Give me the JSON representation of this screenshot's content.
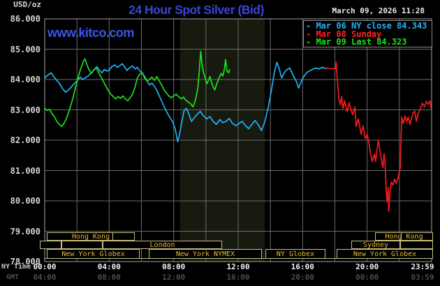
{
  "header": {
    "unit_label": "USD/oz",
    "title": "24 Hour Spot Silver (Bid)",
    "timestamp": "March 09, 2026 11:28",
    "watermark": "www.kitco.com"
  },
  "legend": [
    {
      "label": "- Mar 06 NY close 84.343",
      "color": "#1fb4f5"
    },
    {
      "label": "- Mar 08 Sunday",
      "color": "#ff2222"
    },
    {
      "label": "- Mar 09 Last 84.323",
      "color": "#1ee11e"
    }
  ],
  "axes": {
    "left_label_ny": "NY Time",
    "left_label_gmt": "GMT",
    "y_ticks": [
      {
        "value": 86,
        "label": "86.000"
      },
      {
        "value": 85,
        "label": "85.000"
      },
      {
        "value": 84,
        "label": "84.000"
      },
      {
        "value": 83,
        "label": "83.000"
      },
      {
        "value": 82,
        "label": "82.000"
      },
      {
        "value": 81,
        "label": "81.000"
      },
      {
        "value": 80,
        "label": "80.000"
      },
      {
        "value": 79,
        "label": "79.000"
      },
      {
        "value": 78,
        "label": "78.000"
      }
    ],
    "x_ticks": [
      {
        "t": 0,
        "ny": "00:00",
        "gmt": "04:00"
      },
      {
        "t": 4,
        "ny": "04:00",
        "gmt": "08:00"
      },
      {
        "t": 8,
        "ny": "08:00",
        "gmt": "12:00"
      },
      {
        "t": 12,
        "ny": "12:00",
        "gmt": "16:00"
      },
      {
        "t": 16,
        "ny": "16:00",
        "gmt": "20:00"
      },
      {
        "t": 20,
        "ny": "20:00",
        "gmt": "00:00"
      },
      {
        "t": 23.983,
        "ny": "23:59",
        "gmt": "03:59"
      }
    ]
  },
  "sessions": {
    "rows": [
      {
        "boxes": [
          {
            "x1": 67,
            "x2": 193,
            "label": "Hong Kong",
            "dividers": [
              160
            ]
          },
          {
            "x1": 537,
            "x2": 620,
            "label": "Hong Kong",
            "dividers": [
              573
            ]
          }
        ]
      },
      {
        "boxes": [
          {
            "x1": 57,
            "x2": 88,
            "label": ""
          },
          {
            "x1": 88,
            "x2": 147,
            "label": ""
          },
          {
            "x1": 147,
            "x2": 318,
            "label": "London"
          },
          {
            "x1": 503,
            "x2": 573,
            "label": "Sydney"
          },
          {
            "x1": 573,
            "x2": 620,
            "label": ""
          }
        ]
      },
      {
        "boxes": [
          {
            "x1": 67,
            "x2": 200,
            "label": "New York Globex"
          },
          {
            "x1": 213,
            "x2": 375,
            "label": "New York NYMEX"
          },
          {
            "x1": 380,
            "x2": 466,
            "label": "NY Globex"
          },
          {
            "x1": 482,
            "x2": 620,
            "label": "New York Globex"
          }
        ]
      }
    ]
  },
  "chart_data": {
    "type": "line",
    "title": "24 Hour Spot Silver (Bid)",
    "x_axis": {
      "unit": "hours NY time",
      "range": [
        0,
        24
      ],
      "gridline_step_hours": 2
    },
    "y_axis": {
      "unit": "USD/oz",
      "range": [
        78,
        86
      ],
      "tick_step": 1
    },
    "highlight_band": {
      "t1": 8.4,
      "t2": 13.65,
      "color": "#171b0f"
    },
    "grid": {
      "color": "#6b6b6b",
      "border_color": "#a5a5a5",
      "baseline_color": "#bdb271"
    },
    "series": [
      {
        "name": "Mar 06 NY close",
        "color": "#1fb4f5",
        "last": 84.343,
        "points": [
          [
            0,
            84.05
          ],
          [
            0.2,
            84.15
          ],
          [
            0.4,
            84.22
          ],
          [
            0.55,
            84.1
          ],
          [
            0.7,
            84.0
          ],
          [
            0.9,
            83.88
          ],
          [
            1.1,
            83.7
          ],
          [
            1.3,
            83.58
          ],
          [
            1.45,
            83.65
          ],
          [
            1.6,
            83.72
          ],
          [
            1.8,
            83.85
          ],
          [
            2,
            83.95
          ],
          [
            2.2,
            84.08
          ],
          [
            2.35,
            84.0
          ],
          [
            2.5,
            84.05
          ],
          [
            2.7,
            84.12
          ],
          [
            2.9,
            84.22
          ],
          [
            3.1,
            84.35
          ],
          [
            3.25,
            84.42
          ],
          [
            3.4,
            84.3
          ],
          [
            3.55,
            84.22
          ],
          [
            3.7,
            84.33
          ],
          [
            3.85,
            84.28
          ],
          [
            4,
            84.3
          ],
          [
            4.15,
            84.42
          ],
          [
            4.35,
            84.48
          ],
          [
            4.5,
            84.4
          ],
          [
            4.65,
            84.45
          ],
          [
            4.8,
            84.52
          ],
          [
            4.95,
            84.42
          ],
          [
            5.1,
            84.3
          ],
          [
            5.25,
            84.38
          ],
          [
            5.45,
            84.45
          ],
          [
            5.6,
            84.35
          ],
          [
            5.75,
            84.4
          ],
          [
            5.9,
            84.28
          ],
          [
            6.05,
            84.22
          ],
          [
            6.2,
            84.1
          ],
          [
            6.35,
            83.95
          ],
          [
            6.5,
            83.82
          ],
          [
            6.65,
            83.88
          ],
          [
            6.8,
            83.78
          ],
          [
            7,
            83.6
          ],
          [
            7.2,
            83.35
          ],
          [
            7.4,
            83.12
          ],
          [
            7.6,
            82.9
          ],
          [
            7.8,
            82.72
          ],
          [
            7.95,
            82.6
          ],
          [
            8.1,
            82.35
          ],
          [
            8.25,
            81.95
          ],
          [
            8.35,
            82.15
          ],
          [
            8.5,
            82.6
          ],
          [
            8.65,
            82.98
          ],
          [
            8.8,
            83.05
          ],
          [
            8.95,
            82.85
          ],
          [
            9.1,
            82.62
          ],
          [
            9.25,
            82.72
          ],
          [
            9.45,
            82.85
          ],
          [
            9.65,
            82.95
          ],
          [
            9.85,
            82.8
          ],
          [
            10.05,
            82.7
          ],
          [
            10.25,
            82.78
          ],
          [
            10.45,
            82.62
          ],
          [
            10.65,
            82.52
          ],
          [
            10.85,
            82.68
          ],
          [
            11.05,
            82.58
          ],
          [
            11.25,
            82.62
          ],
          [
            11.45,
            82.72
          ],
          [
            11.65,
            82.55
          ],
          [
            11.85,
            82.48
          ],
          [
            12.05,
            82.55
          ],
          [
            12.25,
            82.62
          ],
          [
            12.45,
            82.48
          ],
          [
            12.65,
            82.38
          ],
          [
            12.85,
            82.52
          ],
          [
            13.05,
            82.65
          ],
          [
            13.25,
            82.5
          ],
          [
            13.45,
            82.32
          ],
          [
            13.65,
            82.6
          ],
          [
            13.85,
            83.05
          ],
          [
            14.05,
            83.6
          ],
          [
            14.25,
            84.25
          ],
          [
            14.4,
            84.57
          ],
          [
            14.55,
            84.35
          ],
          [
            14.7,
            84.05
          ],
          [
            14.85,
            84.22
          ],
          [
            15,
            84.32
          ],
          [
            15.2,
            84.38
          ],
          [
            15.4,
            84.15
          ],
          [
            15.6,
            83.95
          ],
          [
            15.75,
            83.72
          ],
          [
            15.9,
            83.92
          ],
          [
            16.1,
            84.12
          ],
          [
            16.3,
            84.25
          ],
          [
            16.55,
            84.32
          ],
          [
            16.8,
            84.38
          ],
          [
            17,
            84.35
          ],
          [
            17.2,
            84.4
          ],
          [
            17.4,
            84.37
          ],
          [
            17.6,
            84.36
          ]
        ]
      },
      {
        "name": "Mar 09",
        "color": "#1ee11e",
        "last": 84.323,
        "points": [
          [
            0,
            83.05
          ],
          [
            0.15,
            82.98
          ],
          [
            0.3,
            83.02
          ],
          [
            0.45,
            82.88
          ],
          [
            0.6,
            82.78
          ],
          [
            0.75,
            82.62
          ],
          [
            0.9,
            82.52
          ],
          [
            1.05,
            82.45
          ],
          [
            1.2,
            82.56
          ],
          [
            1.35,
            82.72
          ],
          [
            1.5,
            82.95
          ],
          [
            1.65,
            83.2
          ],
          [
            1.8,
            83.5
          ],
          [
            1.95,
            83.82
          ],
          [
            2.1,
            84.12
          ],
          [
            2.25,
            84.38
          ],
          [
            2.4,
            84.6
          ],
          [
            2.5,
            84.68
          ],
          [
            2.6,
            84.52
          ],
          [
            2.75,
            84.32
          ],
          [
            2.9,
            84.2
          ],
          [
            3.05,
            84.32
          ],
          [
            3.2,
            84.38
          ],
          [
            3.35,
            84.22
          ],
          [
            3.5,
            84.08
          ],
          [
            3.65,
            83.92
          ],
          [
            3.8,
            83.78
          ],
          [
            3.95,
            83.62
          ],
          [
            4.1,
            83.52
          ],
          [
            4.25,
            83.44
          ],
          [
            4.4,
            83.36
          ],
          [
            4.55,
            83.44
          ],
          [
            4.7,
            83.38
          ],
          [
            4.85,
            83.46
          ],
          [
            5,
            83.36
          ],
          [
            5.15,
            83.3
          ],
          [
            5.3,
            83.4
          ],
          [
            5.45,
            83.52
          ],
          [
            5.6,
            83.75
          ],
          [
            5.75,
            84.05
          ],
          [
            5.9,
            84.18
          ],
          [
            6.05,
            84.22
          ],
          [
            6.2,
            84.05
          ],
          [
            6.35,
            83.95
          ],
          [
            6.5,
            84.0
          ],
          [
            6.65,
            84.08
          ],
          [
            6.8,
            83.97
          ],
          [
            6.95,
            84.1
          ],
          [
            7.1,
            83.96
          ],
          [
            7.25,
            83.82
          ],
          [
            7.4,
            83.66
          ],
          [
            7.55,
            83.56
          ],
          [
            7.7,
            83.46
          ],
          [
            7.85,
            83.4
          ],
          [
            8,
            83.46
          ],
          [
            8.15,
            83.52
          ],
          [
            8.3,
            83.44
          ],
          [
            8.45,
            83.36
          ],
          [
            8.6,
            83.42
          ],
          [
            8.75,
            83.32
          ],
          [
            8.9,
            83.26
          ],
          [
            9.05,
            83.2
          ],
          [
            9.2,
            83.1
          ],
          [
            9.35,
            83.32
          ],
          [
            9.5,
            83.72
          ],
          [
            9.6,
            84.35
          ],
          [
            9.68,
            84.93
          ],
          [
            9.76,
            84.5
          ],
          [
            9.85,
            84.22
          ],
          [
            9.95,
            84.05
          ],
          [
            10.05,
            83.86
          ],
          [
            10.15,
            83.96
          ],
          [
            10.25,
            84.1
          ],
          [
            10.35,
            83.9
          ],
          [
            10.45,
            83.76
          ],
          [
            10.55,
            83.66
          ],
          [
            10.65,
            83.82
          ],
          [
            10.75,
            83.96
          ],
          [
            10.85,
            84.1
          ],
          [
            10.95,
            84.2
          ],
          [
            11.05,
            84.12
          ],
          [
            11.15,
            84.35
          ],
          [
            11.22,
            84.66
          ],
          [
            11.3,
            84.3
          ],
          [
            11.4,
            84.22
          ],
          [
            11.47,
            84.32
          ]
        ]
      },
      {
        "name": "Mar 08 Sunday",
        "color": "#f51c1c",
        "points": [
          [
            17.45,
            84.36
          ],
          [
            18.05,
            84.36
          ],
          [
            18.08,
            84.57
          ],
          [
            18.12,
            84.2
          ],
          [
            18.18,
            83.8
          ],
          [
            18.25,
            83.36
          ],
          [
            18.33,
            83.17
          ],
          [
            18.42,
            83.44
          ],
          [
            18.5,
            83.05
          ],
          [
            18.6,
            83.3
          ],
          [
            18.76,
            82.94
          ],
          [
            18.89,
            83.24
          ],
          [
            19.0,
            83.0
          ],
          [
            19.1,
            82.84
          ],
          [
            19.24,
            83.1
          ],
          [
            19.32,
            82.45
          ],
          [
            19.45,
            82.7
          ],
          [
            19.63,
            82.2
          ],
          [
            19.75,
            82.48
          ],
          [
            19.88,
            82.05
          ],
          [
            20.0,
            82.2
          ],
          [
            20.1,
            81.95
          ],
          [
            20.2,
            81.6
          ],
          [
            20.32,
            81.3
          ],
          [
            20.45,
            81.55
          ],
          [
            20.52,
            81.3
          ],
          [
            20.6,
            81.62
          ],
          [
            20.7,
            82.0
          ],
          [
            20.78,
            81.72
          ],
          [
            20.88,
            81.35
          ],
          [
            20.98,
            81.1
          ],
          [
            21.05,
            81.56
          ],
          [
            21.12,
            81.2
          ],
          [
            21.18,
            80.4
          ],
          [
            21.24,
            79.98
          ],
          [
            21.3,
            80.45
          ],
          [
            21.34,
            79.66
          ],
          [
            21.42,
            80.3
          ],
          [
            21.5,
            80.62
          ],
          [
            21.6,
            80.52
          ],
          [
            21.7,
            80.72
          ],
          [
            21.8,
            80.58
          ],
          [
            21.9,
            80.72
          ],
          [
            22.0,
            80.95
          ],
          [
            22.06,
            81.1
          ],
          [
            22.1,
            81.98
          ],
          [
            22.15,
            82.76
          ],
          [
            22.25,
            82.55
          ],
          [
            22.35,
            82.8
          ],
          [
            22.45,
            82.62
          ],
          [
            22.55,
            82.76
          ],
          [
            22.65,
            82.52
          ],
          [
            22.75,
            82.72
          ],
          [
            22.85,
            82.9
          ],
          [
            22.95,
            82.96
          ],
          [
            23.05,
            82.62
          ],
          [
            23.18,
            82.9
          ],
          [
            23.3,
            83.02
          ],
          [
            23.42,
            83.22
          ],
          [
            23.55,
            83.1
          ],
          [
            23.68,
            83.28
          ],
          [
            23.8,
            83.18
          ],
          [
            23.9,
            83.3
          ],
          [
            23.98,
            83.05
          ]
        ]
      }
    ]
  }
}
